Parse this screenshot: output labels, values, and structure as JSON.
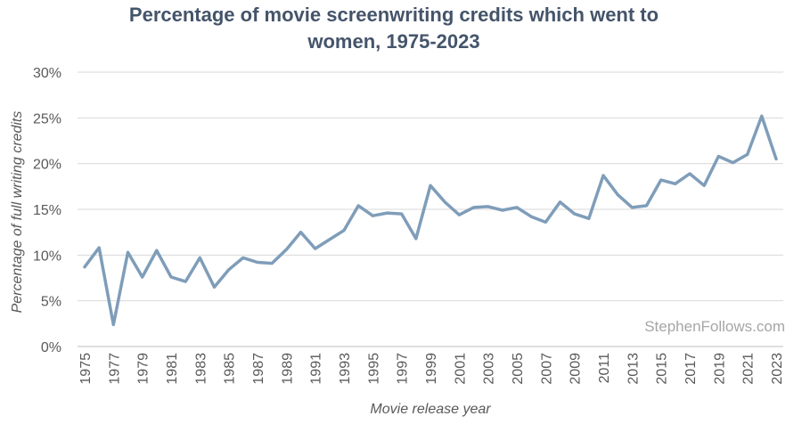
{
  "chart_data": {
    "type": "line",
    "title_lines": [
      "Percentage of movie screenwriting credits which went to",
      "women, 1975-2023"
    ],
    "xlabel": "Movie release year",
    "ylabel": "Percentage of full writing credits",
    "ylim": [
      0,
      30
    ],
    "y_ticks": [
      0,
      5,
      10,
      15,
      20,
      25,
      30
    ],
    "y_tick_labels": [
      "0%",
      "5%",
      "10%",
      "15%",
      "20%",
      "25%",
      "30%"
    ],
    "x_tick_labels": [
      "1975",
      "1977",
      "1979",
      "1981",
      "1983",
      "1985",
      "1987",
      "1989",
      "1991",
      "1993",
      "1995",
      "1997",
      "1999",
      "2001",
      "2003",
      "2005",
      "2007",
      "2009",
      "2011",
      "2013",
      "2015",
      "2017",
      "2019",
      "2021",
      "2023"
    ],
    "grid": "horizontal",
    "line_color": "#7f9db9",
    "watermark": "StephenFollows.com",
    "series": [
      {
        "x": [
          1975,
          1976,
          1977,
          1978,
          1979,
          1980,
          1981,
          1982,
          1983,
          1984,
          1985,
          1986,
          1987,
          1988,
          1989,
          1990,
          1991,
          1992,
          1993,
          1994,
          1995,
          1996,
          1997,
          1998,
          1999,
          2000,
          2001,
          2002,
          2003,
          2004,
          2005,
          2006,
          2007,
          2008,
          2009,
          2010,
          2011,
          2012,
          2013,
          2014,
          2015,
          2016,
          2017,
          2018,
          2019,
          2020,
          2021,
          2022,
          2023
        ],
        "values": [
          8.7,
          10.8,
          2.4,
          10.3,
          7.6,
          10.5,
          7.6,
          7.1,
          9.7,
          6.5,
          8.4,
          9.7,
          9.2,
          9.1,
          10.6,
          12.5,
          10.7,
          11.7,
          12.7,
          15.4,
          14.3,
          14.6,
          14.5,
          11.8,
          17.6,
          15.8,
          14.4,
          15.2,
          15.3,
          14.9,
          15.2,
          14.2,
          13.6,
          15.8,
          14.5,
          14.0,
          18.7,
          16.6,
          15.2,
          15.4,
          18.2,
          17.8,
          18.9,
          17.6,
          20.8,
          20.1,
          21.0,
          25.2,
          20.5
        ]
      }
    ]
  }
}
